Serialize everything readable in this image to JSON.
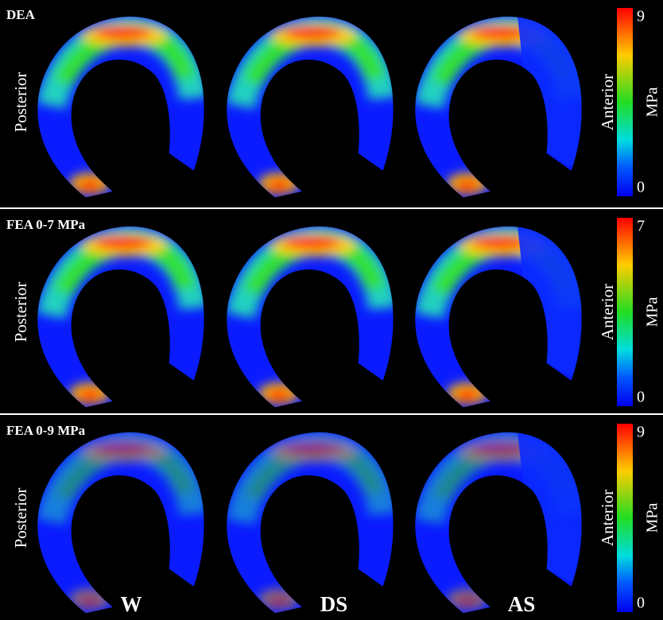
{
  "panels": [
    {
      "title": "DEA",
      "side_label": "Posterior",
      "colorbar": {
        "label": "Anterior",
        "max": "9",
        "min": "0",
        "unit": "MPa"
      }
    },
    {
      "title": "FEA 0-7 MPa",
      "side_label": "Posterior",
      "colorbar": {
        "label": "Anterior",
        "max": "7",
        "min": "0",
        "unit": "MPa"
      }
    },
    {
      "title": "FEA 0-9 MPa",
      "side_label": "Posterior",
      "colorbar": {
        "label": "Anterior",
        "max": "9",
        "min": "0",
        "unit": "MPa"
      }
    }
  ],
  "columns": [
    "W",
    "DS",
    "AS"
  ]
}
